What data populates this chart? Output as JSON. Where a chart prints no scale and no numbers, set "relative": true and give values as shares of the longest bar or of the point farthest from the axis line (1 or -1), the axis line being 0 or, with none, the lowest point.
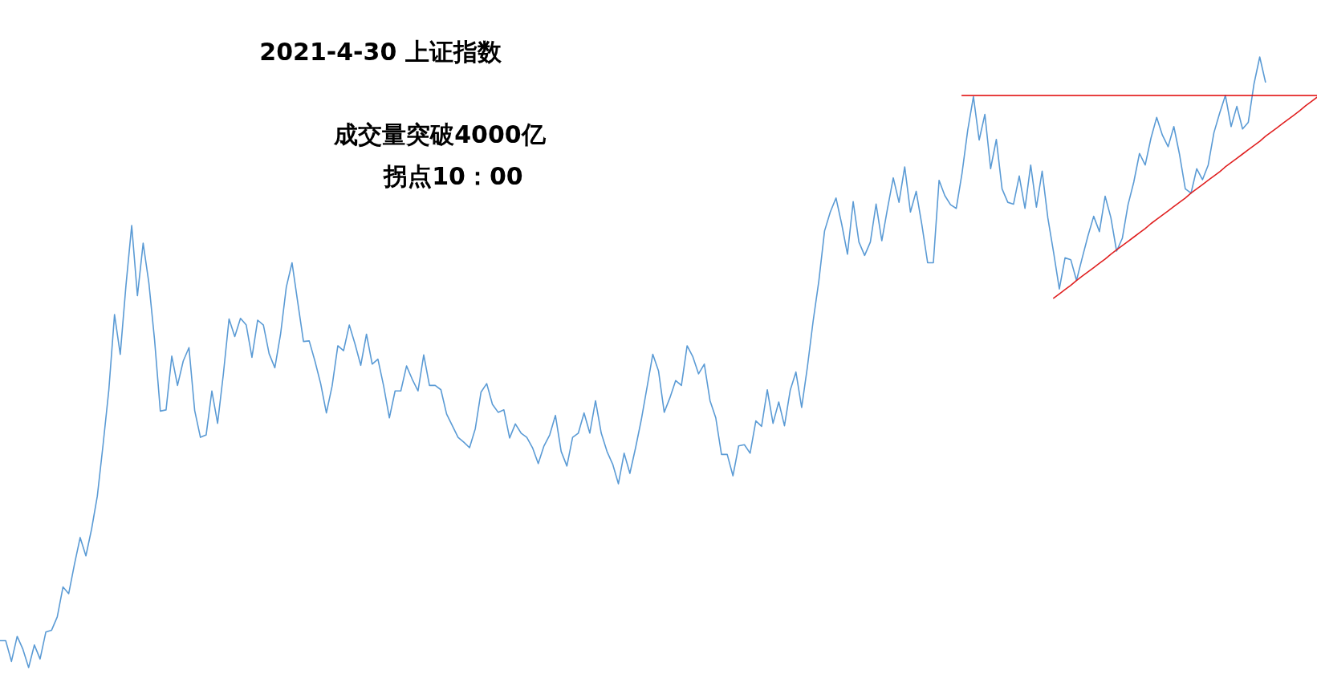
{
  "chart_data": {
    "type": "line",
    "title": "2021-4-30 上证指数",
    "annotations": [
      "成交量突破4000亿",
      "拐点10：00"
    ],
    "relative": true,
    "marker": "none",
    "line_style": "solid",
    "categories": [
      null,
      null,
      null,
      null,
      null,
      null,
      null,
      null,
      null,
      null,
      null,
      null,
      null,
      null,
      null,
      null,
      null,
      null,
      null,
      null,
      null,
      null,
      null,
      null,
      null,
      null,
      null,
      null,
      null,
      null,
      null,
      null,
      null,
      null,
      null,
      null,
      null,
      null,
      null,
      null,
      null,
      null,
      null,
      null,
      null,
      null,
      null,
      null,
      null,
      null,
      null,
      null,
      null,
      null,
      null,
      null,
      null,
      null,
      null,
      null,
      null,
      null,
      null,
      null,
      null,
      null,
      null,
      null,
      null,
      null,
      null,
      null,
      null,
      null,
      null,
      null,
      null,
      null,
      null,
      null,
      null,
      null,
      null,
      null,
      null,
      null,
      null,
      null,
      null,
      null,
      null,
      null,
      null,
      null,
      null,
      null,
      null,
      null,
      null,
      null,
      null,
      null,
      null,
      null,
      null,
      null,
      null,
      null,
      null,
      null,
      null,
      null,
      null,
      null,
      null,
      null,
      null,
      null,
      null,
      null,
      null,
      null,
      null,
      null,
      null,
      null,
      null,
      null,
      null,
      null,
      null,
      null,
      null,
      null,
      null,
      null,
      null,
      null,
      null,
      null,
      null,
      null,
      null,
      null,
      null,
      null,
      null,
      null,
      null,
      null,
      null,
      null,
      null,
      null,
      null,
      null,
      null,
      null,
      null,
      null,
      null,
      null,
      null,
      null,
      null,
      null,
      null,
      null,
      null,
      null,
      null,
      null,
      null,
      null,
      null,
      null,
      null,
      null,
      null,
      null,
      null,
      null,
      null,
      null,
      null,
      null,
      null,
      null,
      null,
      null,
      null,
      null,
      null,
      null,
      null,
      null,
      null,
      null,
      null,
      null,
      null,
      null,
      null,
      null,
      null,
      null,
      null,
      null,
      null,
      null,
      null,
      null,
      null,
      null,
      null,
      null,
      null,
      null,
      null,
      null,
      null,
      null,
      null,
      null,
      null,
      null,
      null,
      null,
      null,
      null,
      null
    ],
    "series": [
      {
        "color": "#5b9bd5",
        "values": [
          0.044,
          0.044,
          0.01,
          0.051,
          0.03,
          0,
          0.037,
          0.014,
          0.058,
          0.061,
          0.083,
          0.132,
          0.121,
          0.169,
          0.213,
          0.183,
          0.227,
          0.281,
          0.365,
          0.454,
          0.578,
          0.513,
          0.626,
          0.724,
          0.609,
          0.695,
          0.63,
          0.536,
          0.42,
          0.422,
          0.51,
          0.462,
          0.502,
          0.524,
          0.421,
          0.377,
          0.381,
          0.453,
          0.4,
          0.48,
          0.571,
          0.542,
          0.572,
          0.561,
          0.508,
          0.569,
          0.561,
          0.514,
          0.491,
          0.546,
          0.623,
          0.663,
          0.598,
          0.534,
          0.535,
          0.502,
          0.465,
          0.417,
          0.461,
          0.527,
          0.519,
          0.561,
          0.53,
          0.495,
          0.546,
          0.497,
          0.505,
          0.461,
          0.409,
          0.453,
          0.453,
          0.494,
          0.472,
          0.453,
          0.512,
          0.462,
          0.462,
          0.455,
          0.415,
          0.396,
          0.377,
          0.369,
          0.36,
          0.391,
          0.451,
          0.465,
          0.431,
          0.418,
          0.422,
          0.376,
          0.399,
          0.384,
          0.377,
          0.36,
          0.334,
          0.363,
          0.381,
          0.413,
          0.354,
          0.33,
          0.377,
          0.384,
          0.417,
          0.384,
          0.437,
          0.384,
          0.354,
          0.333,
          0.301,
          0.351,
          0.318,
          0.36,
          0.406,
          0.459,
          0.513,
          0.486,
          0.418,
          0.442,
          0.47,
          0.462,
          0.527,
          0.509,
          0.481,
          0.497,
          0.437,
          0.409,
          0.349,
          0.349,
          0.314,
          0.363,
          0.365,
          0.351,
          0.404,
          0.395,
          0.455,
          0.4,
          0.435,
          0.396,
          0.454,
          0.484,
          0.426,
          0.492,
          0.567,
          0.633,
          0.715,
          0.746,
          0.769,
          0.726,
          0.677,
          0.763,
          0.697,
          0.675,
          0.697,
          0.759,
          0.699,
          0.752,
          0.802,
          0.762,
          0.82,
          0.746,
          0.78,
          0.725,
          0.663,
          0.663,
          0.798,
          0.773,
          0.758,
          0.752,
          0.809,
          0.88,
          0.935,
          0.864,
          0.906,
          0.817,
          0.865,
          0.784,
          0.762,
          0.759,
          0.805,
          0.752,
          0.823,
          0.754,
          0.813,
          0.736,
          0.68,
          0.62,
          0.671,
          0.668,
          0.634,
          0.671,
          0.707,
          0.739,
          0.714,
          0.772,
          0.737,
          0.682,
          0.703,
          0.758,
          0.795,
          0.842,
          0.823,
          0.867,
          0.901,
          0.872,
          0.853,
          0.886,
          0.84,
          0.784,
          0.777,
          0.817,
          0.799,
          0.823,
          0.876,
          0.908,
          0.937,
          0.886,
          0.919,
          0.882,
          0.893,
          0.956,
          1,
          0.959,
          null,
          null,
          null,
          null,
          null,
          null,
          null,
          null,
          null
        ]
      },
      {
        "type": "line",
        "color": "#e00000",
        "values": [
          null,
          null,
          null,
          null,
          null,
          null,
          null,
          null,
          null,
          null,
          null,
          null,
          null,
          null,
          null,
          null,
          null,
          null,
          null,
          null,
          null,
          null,
          null,
          null,
          null,
          null,
          null,
          null,
          null,
          null,
          null,
          null,
          null,
          null,
          null,
          null,
          null,
          null,
          null,
          null,
          null,
          null,
          null,
          null,
          null,
          null,
          null,
          null,
          null,
          null,
          null,
          null,
          null,
          null,
          null,
          null,
          null,
          null,
          null,
          null,
          null,
          null,
          null,
          null,
          null,
          null,
          null,
          null,
          null,
          null,
          null,
          null,
          null,
          null,
          null,
          null,
          null,
          null,
          null,
          null,
          null,
          null,
          null,
          null,
          null,
          null,
          null,
          null,
          null,
          null,
          null,
          null,
          null,
          null,
          null,
          null,
          null,
          null,
          null,
          null,
          null,
          null,
          null,
          null,
          null,
          null,
          null,
          null,
          null,
          null,
          null,
          null,
          null,
          null,
          null,
          null,
          null,
          null,
          null,
          null,
          null,
          null,
          null,
          null,
          null,
          null,
          null,
          null,
          null,
          null,
          null,
          null,
          null,
          null,
          null,
          null,
          null,
          null,
          null,
          null,
          null,
          null,
          null,
          null,
          null,
          null,
          null,
          null,
          null,
          null,
          null,
          null,
          null,
          null,
          null,
          null,
          null,
          null,
          null,
          null,
          null,
          null,
          null,
          null,
          null,
          null,
          null,
          null,
          0.937,
          0.937,
          0.937,
          0.937,
          0.937,
          0.937,
          0.937,
          0.937,
          0.937,
          0.937,
          0.937,
          0.937,
          0.937,
          0.937,
          0.937,
          0.937,
          0.937,
          0.937,
          0.937,
          0.937,
          0.937,
          0.937,
          0.937,
          0.937,
          0.937,
          0.937,
          0.937,
          0.937,
          0.937,
          0.937,
          0.937,
          0.937,
          0.937,
          0.937,
          0.937,
          0.937,
          0.937,
          0.937,
          0.937,
          0.937,
          0.937,
          0.937,
          0.937,
          0.937,
          0.937,
          0.937,
          0.937,
          0.937,
          0.937,
          0.937,
          0.937,
          0.937,
          0.937,
          0.937,
          0.937,
          0.937,
          0.937,
          0.937,
          0.937,
          0.937,
          0.937,
          0.937,
          0.937
        ]
      },
      {
        "type": "line",
        "color": "#e02020",
        "values": [
          null,
          null,
          null,
          null,
          null,
          null,
          null,
          null,
          null,
          null,
          null,
          null,
          null,
          null,
          null,
          null,
          null,
          null,
          null,
          null,
          null,
          null,
          null,
          null,
          null,
          null,
          null,
          null,
          null,
          null,
          null,
          null,
          null,
          null,
          null,
          null,
          null,
          null,
          null,
          null,
          null,
          null,
          null,
          null,
          null,
          null,
          null,
          null,
          null,
          null,
          null,
          null,
          null,
          null,
          null,
          null,
          null,
          null,
          null,
          null,
          null,
          null,
          null,
          null,
          null,
          null,
          null,
          null,
          null,
          null,
          null,
          null,
          null,
          null,
          null,
          null,
          null,
          null,
          null,
          null,
          null,
          null,
          null,
          null,
          null,
          null,
          null,
          null,
          null,
          null,
          null,
          null,
          null,
          null,
          null,
          null,
          null,
          null,
          null,
          null,
          null,
          null,
          null,
          null,
          null,
          null,
          null,
          null,
          null,
          null,
          null,
          null,
          null,
          null,
          null,
          null,
          null,
          null,
          null,
          null,
          null,
          null,
          null,
          null,
          null,
          null,
          null,
          null,
          null,
          null,
          null,
          null,
          null,
          null,
          null,
          null,
          null,
          null,
          null,
          null,
          null,
          null,
          null,
          null,
          null,
          null,
          null,
          null,
          null,
          null,
          null,
          null,
          null,
          null,
          null,
          null,
          null,
          null,
          null,
          null,
          null,
          null,
          null,
          null,
          null,
          null,
          null,
          null,
          null,
          null,
          null,
          null,
          null,
          null,
          null,
          null,
          null,
          null,
          null,
          null,
          null,
          null,
          null,
          null,
          0.605,
          0.612,
          0.619,
          0.626,
          0.634,
          0.641,
          0.648,
          0.655,
          0.662,
          0.669,
          0.677,
          0.684,
          0.691,
          0.698,
          0.705,
          0.712,
          0.719,
          0.727,
          0.734,
          0.741,
          0.748,
          0.755,
          0.762,
          0.769,
          0.777,
          0.784,
          0.791,
          0.798,
          0.805,
          0.812,
          0.82,
          0.827,
          0.834,
          0.841,
          0.848,
          0.855,
          0.862,
          0.87,
          0.877,
          0.884,
          0.891,
          0.898,
          0.905,
          0.912,
          0.92,
          0.927,
          0.934
        ]
      }
    ]
  }
}
